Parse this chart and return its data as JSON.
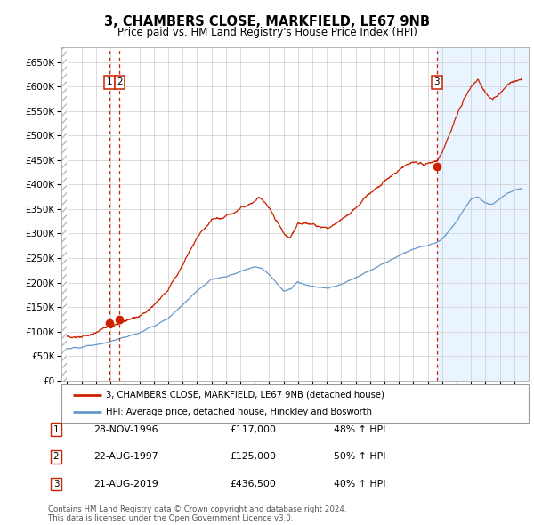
{
  "title": "3, CHAMBERS CLOSE, MARKFIELD, LE67 9NB",
  "subtitle": "Price paid vs. HM Land Registry's House Price Index (HPI)",
  "legend_line1": "3, CHAMBERS CLOSE, MARKFIELD, LE67 9NB (detached house)",
  "legend_line2": "HPI: Average price, detached house, Hinckley and Bosworth",
  "footer_line1": "Contains HM Land Registry data © Crown copyright and database right 2024.",
  "footer_line2": "This data is licensed under the Open Government Licence v3.0.",
  "transactions": [
    {
      "num": 1,
      "date": "28-NOV-1996",
      "price": 117000,
      "hpi_pct": "48% ↑ HPI",
      "x": 1996.91
    },
    {
      "num": 2,
      "date": "22-AUG-1997",
      "price": 125000,
      "hpi_pct": "50% ↑ HPI",
      "x": 1997.64
    },
    {
      "num": 3,
      "date": "21-AUG-2019",
      "price": 436500,
      "hpi_pct": "40% ↑ HPI",
      "x": 2019.64
    }
  ],
  "hpi_color": "#6699cc",
  "price_color": "#cc2200",
  "vline_color": "#cc2200",
  "marker_color": "#cc2200",
  "grid_color": "#cccccc",
  "background_color": "#ffffff",
  "plot_bg_color": "#ffffff",
  "right_panel_color": "#ddeeff",
  "ylim": [
    0,
    680000
  ],
  "ytick_step": 50000,
  "xmin": 1993.6,
  "xmax": 2026.0,
  "data_start": 1994.0,
  "last_sale_x": 2019.64,
  "hpi_anchors": {
    "1994.0": 65000,
    "1995.0": 68000,
    "1996.0": 72000,
    "1997.0": 78000,
    "1998.0": 87000,
    "1999.0": 97000,
    "2000.0": 112000,
    "2001.0": 128000,
    "2002.0": 158000,
    "2003.0": 188000,
    "2004.0": 210000,
    "2005.0": 215000,
    "2006.0": 225000,
    "2007.0": 232000,
    "2007.5": 230000,
    "2008.0": 218000,
    "2009.0": 182000,
    "2009.5": 185000,
    "2010.0": 200000,
    "2011.0": 195000,
    "2012.0": 192000,
    "2013.0": 200000,
    "2014.0": 215000,
    "2015.0": 232000,
    "2016.0": 248000,
    "2017.0": 262000,
    "2018.0": 275000,
    "2019.0": 282000,
    "2019.64": 288000,
    "2020.0": 295000,
    "2021.0": 330000,
    "2021.5": 355000,
    "2022.0": 375000,
    "2022.5": 380000,
    "2023.0": 368000,
    "2023.5": 365000,
    "2024.0": 375000,
    "2024.5": 385000,
    "2025.0": 390000,
    "2025.5": 392000
  },
  "prop_anchors": {
    "1994.0": 90000,
    "1995.0": 95000,
    "1996.0": 103000,
    "1996.91": 117000,
    "1997.0": 117500,
    "1997.64": 125000,
    "1998.0": 130000,
    "1999.0": 148000,
    "2000.0": 175000,
    "2001.0": 205000,
    "2002.0": 255000,
    "2003.0": 305000,
    "2004.0": 340000,
    "2005.0": 345000,
    "2006.0": 360000,
    "2007.0": 368000,
    "2007.3": 375000,
    "2008.0": 350000,
    "2009.0": 300000,
    "2009.5": 295000,
    "2010.0": 318000,
    "2011.0": 312000,
    "2012.0": 305000,
    "2013.0": 322000,
    "2014.0": 348000,
    "2015.0": 378000,
    "2016.0": 400000,
    "2017.0": 420000,
    "2018.0": 435000,
    "2019.0": 440000,
    "2019.64": 436500,
    "2020.0": 452000,
    "2021.0": 530000,
    "2021.5": 565000,
    "2022.0": 590000,
    "2022.5": 605000,
    "2023.0": 582000,
    "2023.5": 570000,
    "2024.0": 585000,
    "2024.5": 600000,
    "2025.0": 610000,
    "2025.5": 615000
  }
}
